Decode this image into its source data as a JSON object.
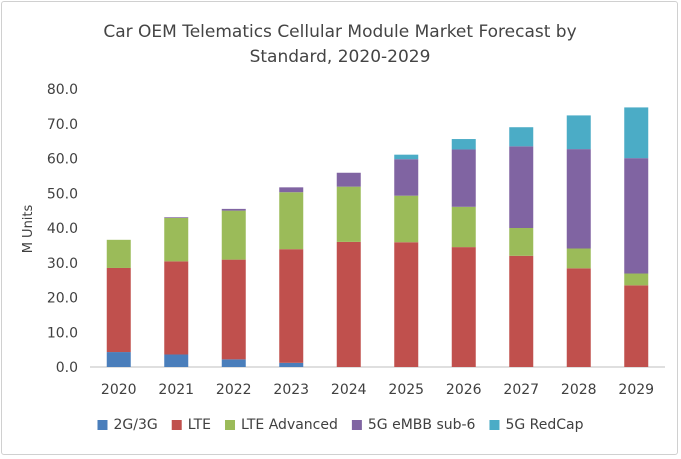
{
  "chart_data": {
    "type": "bar",
    "stacked": true,
    "title_line1": "Car OEM Telematics Cellular Module Market Forecast by",
    "title_line2": "Standard, 2020-2029",
    "xlabel": "",
    "ylabel": "M Units",
    "ylim": [
      0,
      80
    ],
    "yticks": [
      "0.0",
      "10.0",
      "20.0",
      "30.0",
      "40.0",
      "50.0",
      "60.0",
      "70.0",
      "80.0"
    ],
    "grid": false,
    "legend_position": "bottom",
    "categories": [
      "2020",
      "2021",
      "2022",
      "2023",
      "2024",
      "2025",
      "2026",
      "2027",
      "2028",
      "2029"
    ],
    "series": [
      {
        "name": "2G/3G",
        "color": "#4a7ebb",
        "values": [
          4.3,
          3.6,
          2.2,
          1.2,
          0,
          0,
          0,
          0,
          0,
          0
        ]
      },
      {
        "name": "LTE",
        "color": "#c0504d",
        "values": [
          24.2,
          26.8,
          28.7,
          32.7,
          36.0,
          35.9,
          34.5,
          32.0,
          28.4,
          23.5
        ]
      },
      {
        "name": "LTE Advanced",
        "color": "#9bbb59",
        "values": [
          8.1,
          12.5,
          14.1,
          16.4,
          15.9,
          13.4,
          11.6,
          8.0,
          5.7,
          3.4
        ]
      },
      {
        "name": "5G eMBB sub-6",
        "color": "#8064a2",
        "values": [
          0,
          0.2,
          0.5,
          1.4,
          4.0,
          10.5,
          16.5,
          23.5,
          28.6,
          33.2
        ]
      },
      {
        "name": "5G RedCap",
        "color": "#4bacc6",
        "values": [
          0,
          0,
          0,
          0,
          0,
          1.3,
          3.0,
          5.5,
          9.7,
          14.6
        ]
      }
    ]
  }
}
